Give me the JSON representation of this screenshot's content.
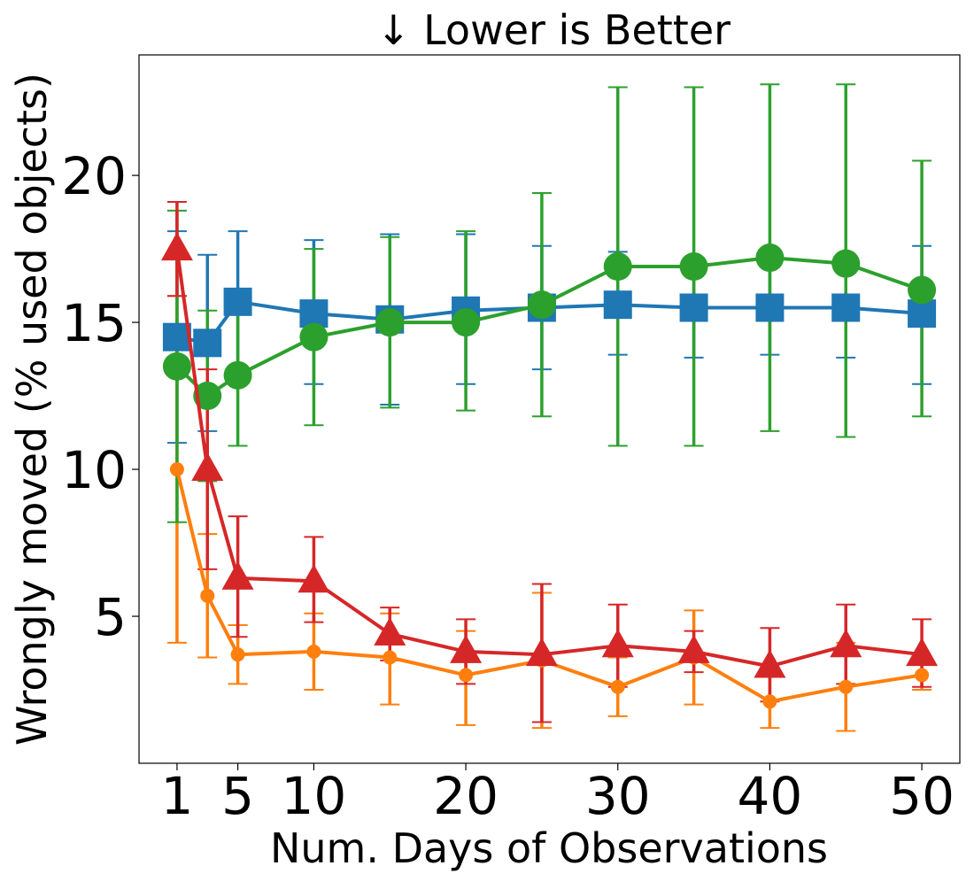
{
  "chart_data": {
    "type": "line",
    "title": "↓  Lower is Better",
    "xlabel": "Num. Days of Observations",
    "ylabel": "Wrongly moved (% used objects)",
    "xlim": [
      -1.5,
      52.5
    ],
    "ylim": [
      0,
      24.1
    ],
    "xticks": [
      1,
      5,
      10,
      20,
      30,
      40,
      50
    ],
    "yticks": [
      5,
      10,
      15,
      20
    ],
    "x": [
      1,
      3,
      5,
      10,
      15,
      20,
      25,
      30,
      35,
      40,
      45,
      50
    ],
    "grid": false,
    "legend": "none",
    "series": [
      {
        "color": "#1f77b4",
        "marker": "square",
        "values": [
          14.5,
          14.3,
          15.7,
          15.3,
          15.1,
          15.4,
          15.5,
          15.6,
          15.5,
          15.5,
          15.5,
          15.3
        ],
        "err_low": [
          10.9,
          11.3,
          13.2,
          12.9,
          12.2,
          12.9,
          13.4,
          13.9,
          13.8,
          13.9,
          13.8,
          12.9
        ],
        "err_high": [
          18.1,
          17.3,
          18.1,
          17.8,
          18.0,
          18.0,
          17.6,
          17.4,
          17.2,
          17.2,
          17.2,
          17.6
        ]
      },
      {
        "color": "#ff7f0e",
        "marker": "circle-small",
        "values": [
          10.0,
          5.7,
          3.7,
          3.8,
          3.6,
          3.0,
          3.5,
          2.6,
          3.6,
          2.1,
          2.6,
          3.0
        ],
        "err_low": [
          4.1,
          3.6,
          2.7,
          2.5,
          2.0,
          1.3,
          1.2,
          1.6,
          2.0,
          1.2,
          1.1,
          2.5
        ],
        "err_high": [
          15.9,
          7.8,
          4.7,
          5.1,
          5.1,
          4.5,
          5.8,
          3.6,
          5.2,
          3.0,
          4.1,
          3.4
        ]
      },
      {
        "color": "#2ca02c",
        "marker": "circle",
        "values": [
          13.5,
          12.5,
          13.2,
          14.5,
          15.0,
          15.0,
          15.6,
          16.9,
          16.9,
          17.2,
          17.0,
          16.1
        ],
        "err_low": [
          8.2,
          9.6,
          10.8,
          11.5,
          12.1,
          12.0,
          11.8,
          10.8,
          10.8,
          11.3,
          11.1,
          11.8
        ],
        "err_high": [
          18.8,
          15.4,
          15.6,
          17.5,
          17.9,
          18.1,
          19.4,
          23.0,
          23.0,
          23.1,
          23.1,
          20.5
        ]
      },
      {
        "color": "#d62728",
        "marker": "triangle",
        "values": [
          17.5,
          10.0,
          6.3,
          6.2,
          4.4,
          3.8,
          3.7,
          4.0,
          3.8,
          3.3,
          4.0,
          3.7
        ],
        "err_low": [
          15.9,
          6.6,
          4.3,
          4.8,
          3.5,
          2.7,
          1.4,
          2.6,
          3.1,
          2.1,
          2.7,
          2.6
        ],
        "err_high": [
          19.1,
          13.4,
          8.4,
          7.7,
          5.3,
          4.9,
          6.1,
          5.4,
          4.5,
          4.6,
          5.4,
          4.9
        ]
      }
    ]
  }
}
